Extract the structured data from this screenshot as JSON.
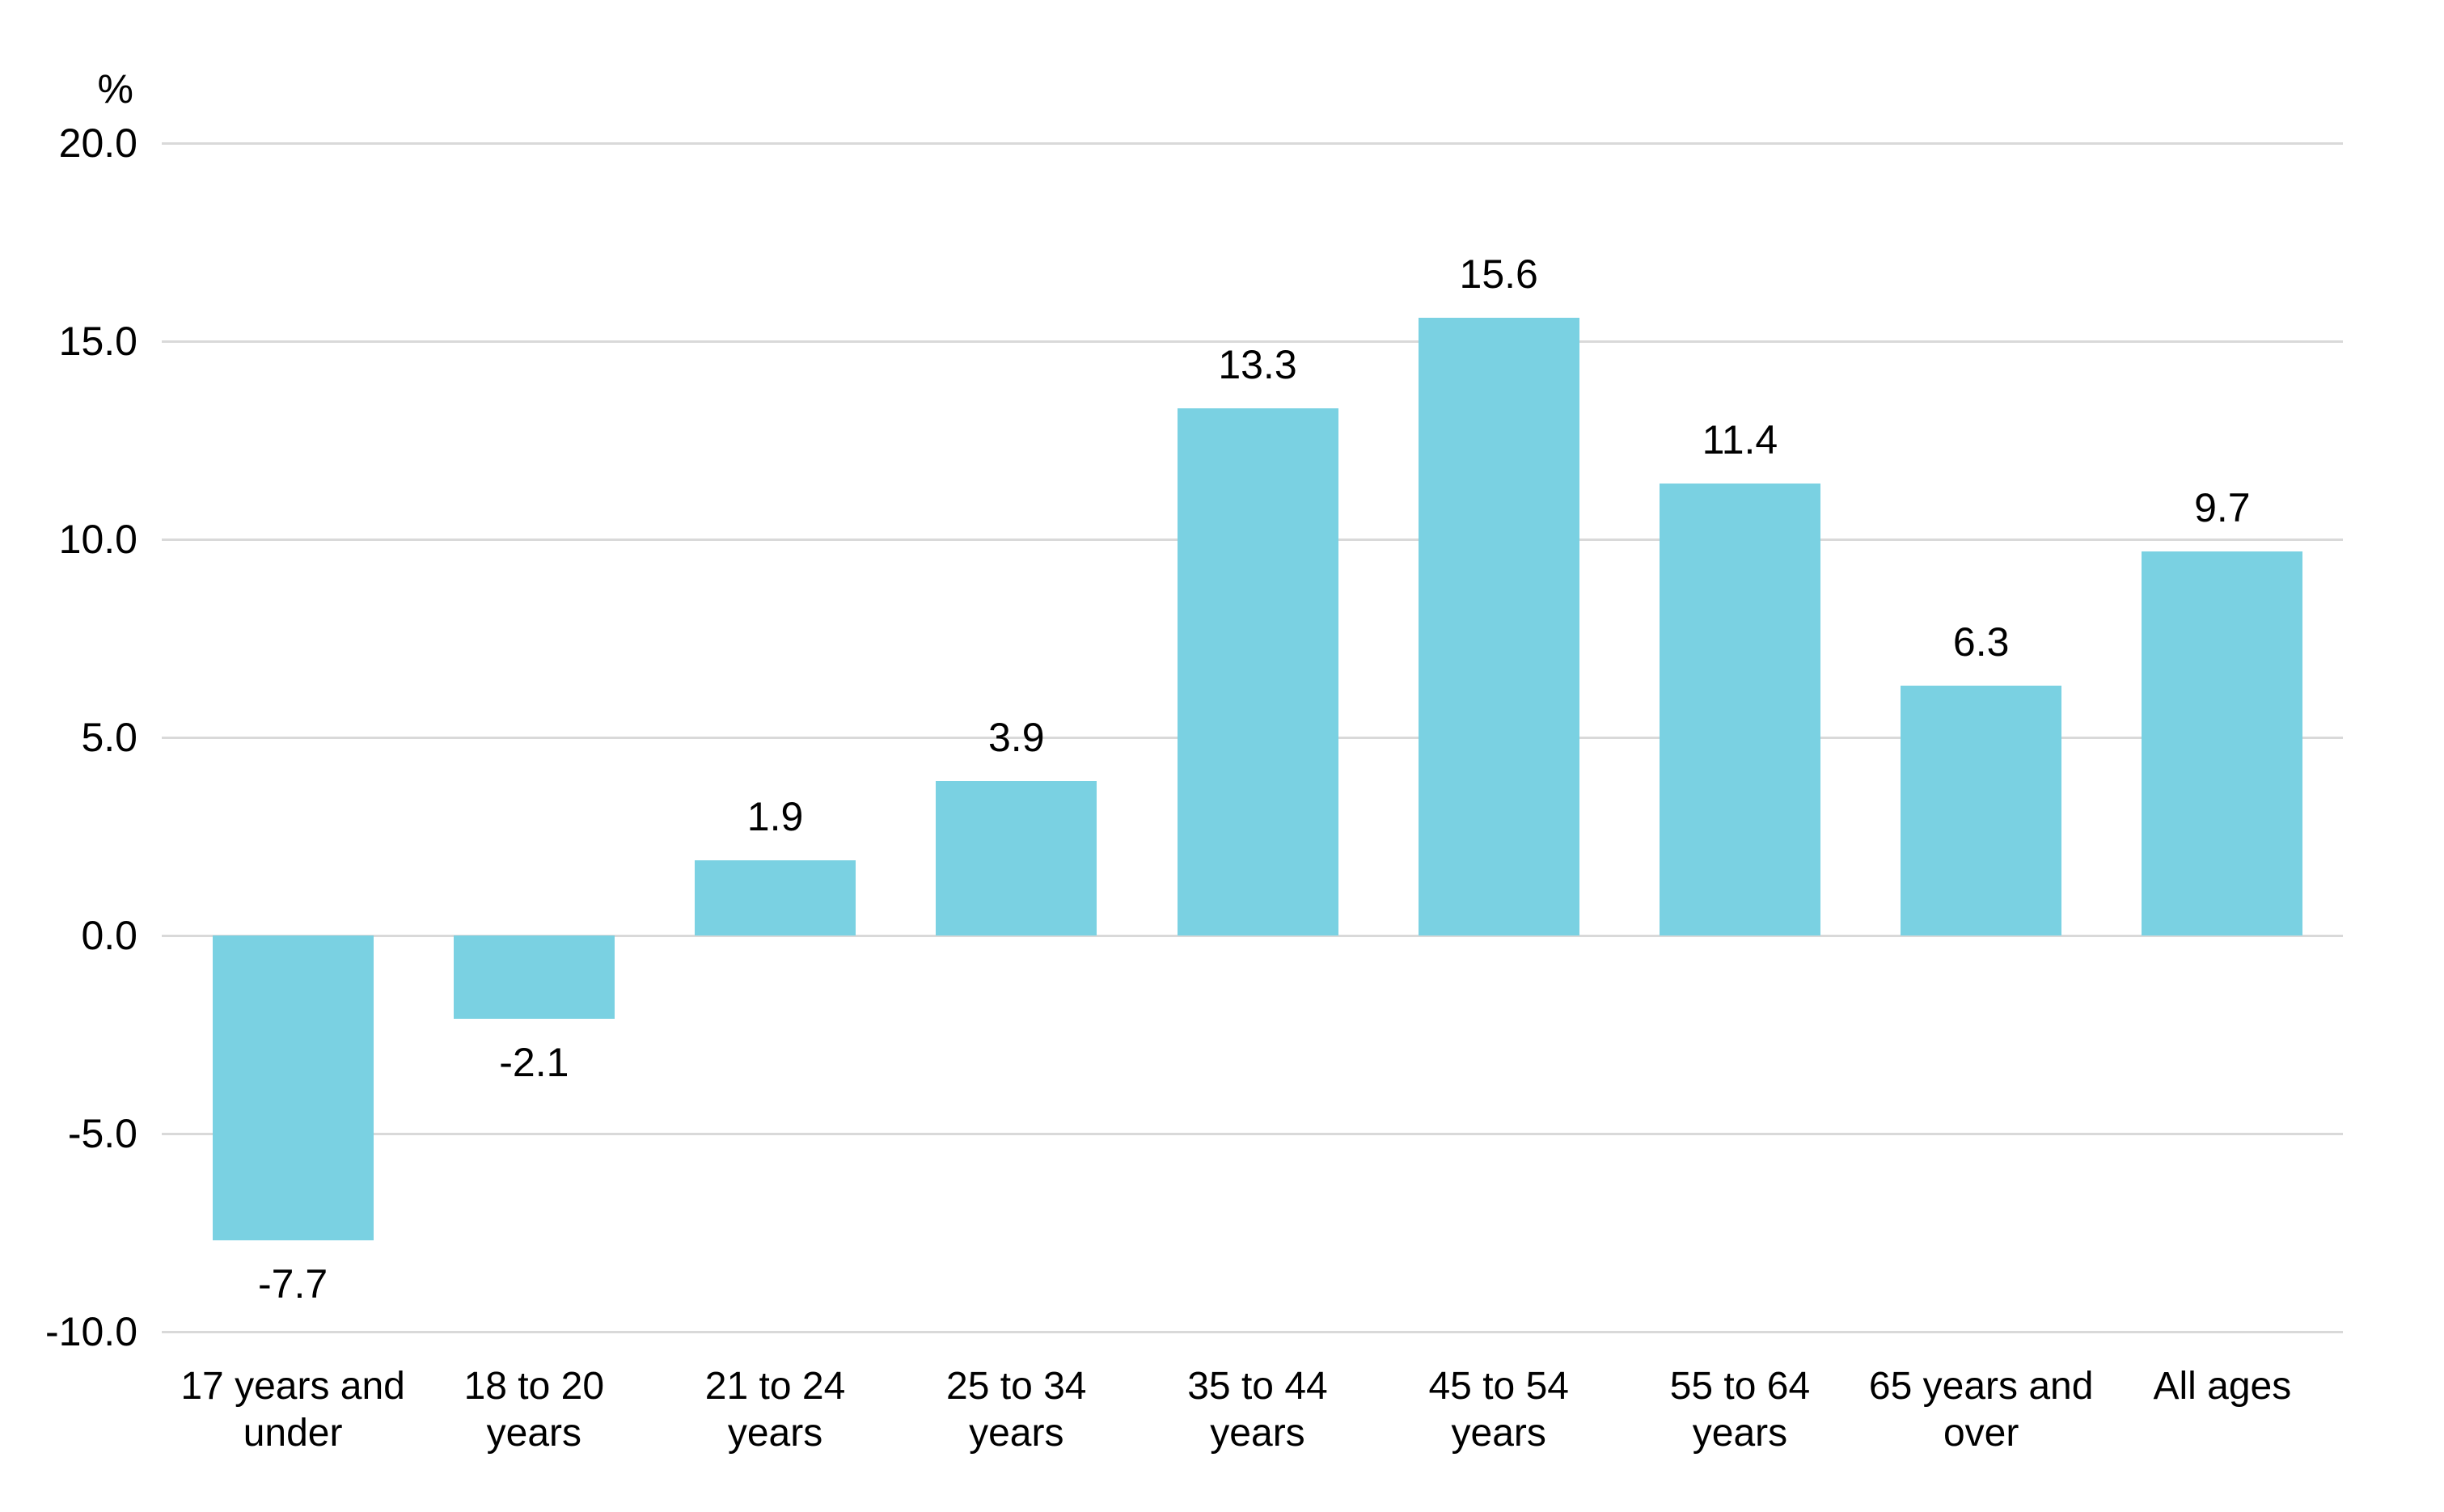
{
  "chart_data": {
    "type": "bar",
    "title": "",
    "xlabel": "",
    "ylabel": "",
    "unit_label": "%",
    "categories": [
      "17 years and under",
      "18 to 20 years",
      "21 to 24 years",
      "25 to 34 years",
      "35 to 44 years",
      "45 to 54 years",
      "55 to 64 years",
      "65 years and over",
      "All ages"
    ],
    "category_lines": [
      [
        "17 years and",
        "under"
      ],
      [
        "18 to 20",
        "years"
      ],
      [
        "21 to 24",
        "years"
      ],
      [
        "25 to 34",
        "years"
      ],
      [
        "35 to 44",
        "years"
      ],
      [
        "45 to 54",
        "years"
      ],
      [
        "55 to 64",
        "years"
      ],
      [
        "65 years and",
        "over"
      ],
      [
        "All ages"
      ]
    ],
    "values": [
      -7.7,
      -2.1,
      1.9,
      3.9,
      13.3,
      15.6,
      11.4,
      6.3,
      9.7
    ],
    "value_labels": [
      "-7.7",
      "-2.1",
      "1.9",
      "3.9",
      "13.3",
      "15.6",
      "11.4",
      "6.3",
      "9.7"
    ],
    "y_ticks": [
      {
        "value": 20,
        "label": "20.0"
      },
      {
        "value": 15,
        "label": "15.0"
      },
      {
        "value": 10,
        "label": "10.0"
      },
      {
        "value": 5,
        "label": "5.0"
      },
      {
        "value": 0,
        "label": "0.0"
      },
      {
        "value": -5,
        "label": "-5.0"
      },
      {
        "value": -10,
        "label": "-10.0"
      }
    ],
    "ylim": [
      -10,
      20
    ],
    "grid": true,
    "legend_position": "none",
    "colors": {
      "bar": "#7AD1E2",
      "gridline": "#D9D9D9",
      "text": "#000000",
      "background": "#FFFFFF"
    }
  }
}
